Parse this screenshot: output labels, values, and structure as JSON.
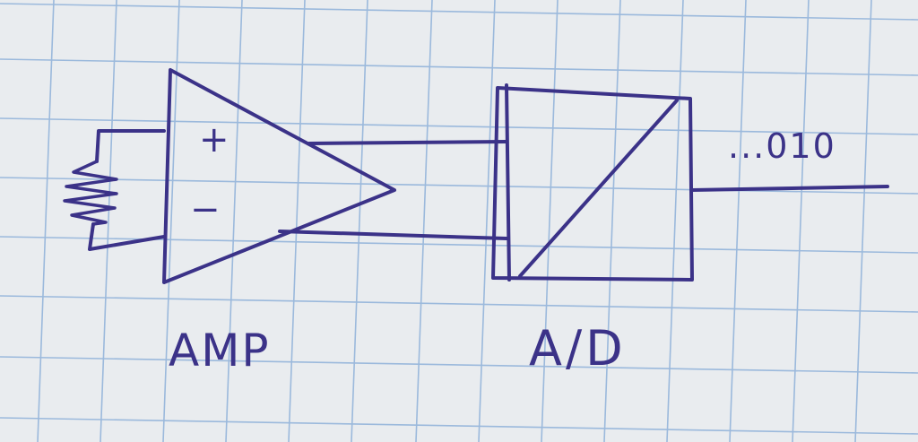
{
  "colors": {
    "ink": "#3b3288",
    "paper": "#e9ecef",
    "grid": "#9bb9dc"
  },
  "diagram": {
    "amp_label": "AMP",
    "adc_label": "A/D",
    "output_label": "...010",
    "plus_sign": "+",
    "minus_sign": "−"
  },
  "icons": {
    "sensor": "resistor-icon",
    "amplifier": "amplifier-triangle-icon",
    "converter": "adc-box-icon"
  }
}
